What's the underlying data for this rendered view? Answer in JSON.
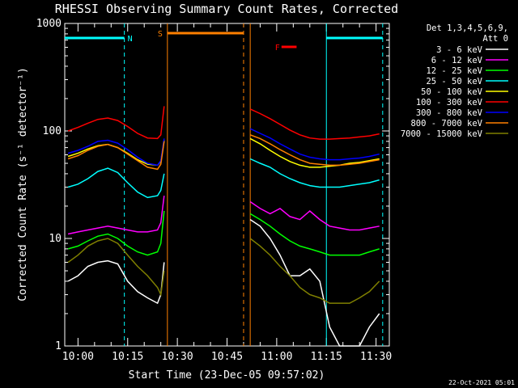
{
  "chart_data": {
    "type": "line",
    "title": "RHESSI Observing Summary Count Rates, Corrected",
    "xlabel": "Start Time (23-Dec-05 09:57:02)",
    "ylabel": "Corrected Count Rate (s⁻¹ detector⁻¹)",
    "y_scale": "log",
    "ylim": [
      1,
      1000
    ],
    "xlim": [
      "09:56",
      "11:34"
    ],
    "x_ticks": [
      "10:00",
      "10:15",
      "10:30",
      "10:45",
      "11:00",
      "11:15",
      "11:30"
    ],
    "y_ticks": [
      {
        "value": 1,
        "label": "1"
      },
      {
        "value": 10,
        "label": "10"
      },
      {
        "value": 100,
        "label": "100"
      },
      {
        "value": 1000,
        "label": "1000"
      }
    ],
    "legend": {
      "placement": "right",
      "header": [
        "Det 1,3,4,5,6,9,",
        "Att 0"
      ]
    },
    "timestamp": "22-Oct-2021 05:01",
    "night_color": "#00ffff",
    "saa_color": "#ff8000",
    "flare_color": "#ff0000",
    "flags": [
      {
        "label": "N",
        "start": "09:56",
        "end": "10:14",
        "color": "#00ffff"
      },
      {
        "label": "S",
        "start": "10:27",
        "end": "10:50",
        "color": "#ff8000"
      },
      {
        "label": "F",
        "start": "10:59",
        "end": "11:06",
        "color": "#ff0000"
      },
      {
        "label": "",
        "start": "11:15",
        "end": "11:32",
        "color": "#00ffff"
      }
    ],
    "markers": [
      {
        "time": "10:14",
        "color": "#00ffff",
        "style": "dashed"
      },
      {
        "time": "10:27",
        "color": "#ff8000",
        "style": "solid"
      },
      {
        "time": "10:50",
        "color": "#ff8000",
        "style": "dashed"
      },
      {
        "time": "10:52",
        "color": "#ff8000",
        "style": "solid"
      },
      {
        "time": "11:15",
        "color": "#00ffff",
        "style": "solid"
      },
      {
        "time": "11:32",
        "color": "#00ffff",
        "style": "dashed"
      }
    ],
    "x": [
      "09:57",
      "10:00",
      "10:03",
      "10:06",
      "10:09",
      "10:12",
      "10:15",
      "10:18",
      "10:21",
      "10:24",
      "10:25",
      "10:26",
      "10:52",
      "10:55",
      "10:58",
      "11:01",
      "11:04",
      "11:07",
      "11:10",
      "11:13",
      "11:16",
      "11:19",
      "11:22",
      "11:25",
      "11:28",
      "11:31"
    ],
    "series": [
      {
        "name": "3 - 6 keV",
        "color": "#ffffff",
        "values": [
          4,
          4.5,
          5.5,
          6,
          6.2,
          5.8,
          4,
          3.2,
          2.8,
          2.5,
          3,
          6,
          15,
          13,
          10,
          7,
          4.5,
          4.5,
          5.2,
          4,
          1.5,
          1,
          1,
          1,
          1.5,
          2
        ]
      },
      {
        "name": "6 - 12 keV",
        "color": "#ff00ff",
        "values": [
          11,
          11.5,
          12,
          12.5,
          13,
          12.5,
          12,
          11.5,
          11.5,
          12,
          14,
          25,
          22,
          19,
          17,
          19,
          16,
          15,
          18,
          15,
          13,
          12.5,
          12,
          12,
          12.5,
          13
        ]
      },
      {
        "name": "12 - 25 keV",
        "color": "#00ff00",
        "values": [
          8,
          8.5,
          9.5,
          10.5,
          11,
          10,
          8.5,
          7.5,
          7,
          7.5,
          9,
          18,
          17,
          15,
          13,
          11,
          9.5,
          8.5,
          8,
          7.5,
          7,
          7,
          7,
          7,
          7.5,
          8
        ]
      },
      {
        "name": "25 - 50 keV",
        "color": "#00ffff",
        "values": [
          30,
          32,
          36,
          42,
          45,
          41,
          33,
          27,
          24,
          25,
          28,
          40,
          55,
          50,
          46,
          40,
          36,
          33,
          31,
          30,
          30,
          30,
          31,
          32,
          33,
          35
        ]
      },
      {
        "name": "50 - 100 keV",
        "color": "#ffff00",
        "values": [
          58,
          62,
          68,
          73,
          75,
          70,
          62,
          54,
          49,
          48,
          52,
          82,
          85,
          76,
          66,
          58,
          52,
          48,
          46,
          46,
          47,
          48,
          50,
          51,
          53,
          55
        ]
      },
      {
        "name": "100 - 300 keV",
        "color": "#ff0000",
        "values": [
          100,
          108,
          118,
          128,
          132,
          125,
          110,
          95,
          86,
          85,
          92,
          170,
          160,
          145,
          130,
          115,
          102,
          92,
          86,
          84,
          84,
          85,
          86,
          88,
          90,
          94
        ]
      },
      {
        "name": "300 - 800 keV",
        "color": "#0000ff",
        "values": [
          62,
          66,
          72,
          80,
          82,
          77,
          67,
          57,
          50,
          48,
          53,
          85,
          105,
          95,
          86,
          76,
          68,
          61,
          57,
          55,
          54,
          54,
          55,
          56,
          58,
          61
        ]
      },
      {
        "name": "800 - 7000 keV",
        "color": "#ff8000",
        "values": [
          55,
          59,
          66,
          72,
          75,
          70,
          61,
          53,
          46,
          44,
          49,
          80,
          92,
          85,
          76,
          67,
          60,
          54,
          50,
          49,
          48,
          48,
          49,
          50,
          52,
          54
        ]
      },
      {
        "name": "7000 - 15000 keV",
        "color": "#808000",
        "values": [
          6,
          7,
          8.5,
          9.5,
          10,
          9,
          7,
          5.5,
          4.5,
          3.5,
          3,
          5,
          10,
          8.5,
          7,
          5.5,
          4.5,
          3.5,
          3,
          2.8,
          2.5,
          2.5,
          2.5,
          2.8,
          3.2,
          4
        ]
      }
    ]
  }
}
